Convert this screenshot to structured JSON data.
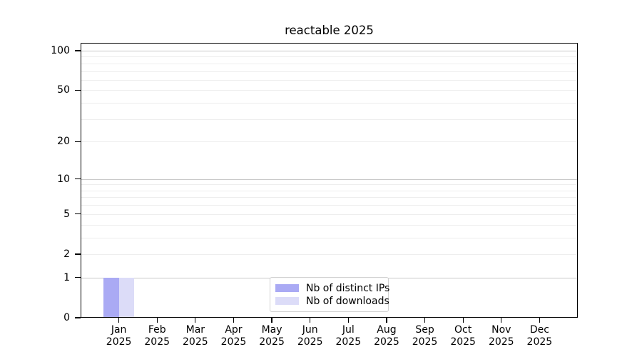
{
  "chart_data": {
    "type": "bar",
    "title": "reactable 2025",
    "categories": [
      "Jan 2025",
      "Feb 2025",
      "Mar 2025",
      "Apr 2025",
      "May 2025",
      "Jun 2025",
      "Jul 2025",
      "Aug 2025",
      "Sep 2025",
      "Oct 2025",
      "Nov 2025",
      "Dec 2025"
    ],
    "x_tick_line1": [
      "Jan",
      "Feb",
      "Mar",
      "Apr",
      "May",
      "Jun",
      "Jul",
      "Aug",
      "Sep",
      "Oct",
      "Nov",
      "Dec"
    ],
    "x_tick_line2": "2025",
    "y_axis": {
      "scale": "log1p",
      "ticks": [
        0,
        1,
        2,
        5,
        10,
        20,
        50,
        100
      ],
      "major_gridlines": [
        1,
        10,
        100
      ],
      "minor_gridlines": [
        2,
        3,
        4,
        5,
        6,
        7,
        8,
        9,
        20,
        30,
        40,
        50,
        60,
        70,
        80,
        90
      ],
      "ylim": [
        0,
        114.7
      ]
    },
    "series": [
      {
        "name": "Nb of distinct IPs",
        "color": "#aaaaf4",
        "values": [
          1,
          0,
          0,
          0,
          0,
          0,
          0,
          0,
          0,
          0,
          0,
          0
        ]
      },
      {
        "name": "Nb of downloads",
        "color": "#dcdcf8",
        "values": [
          1,
          0,
          0,
          0,
          0,
          0,
          0,
          0,
          0,
          0,
          0,
          0
        ]
      }
    ],
    "legend": {
      "position": "inside-bottom-center",
      "items": [
        "Nb of distinct IPs",
        "Nb of downloads"
      ]
    },
    "grid": true
  },
  "colors": {
    "major_grid": "#c9c9c9",
    "minor_grid": "#eeeeee",
    "spine": "#000000",
    "legend_border": "#d2d2d2",
    "text": "#000000"
  }
}
